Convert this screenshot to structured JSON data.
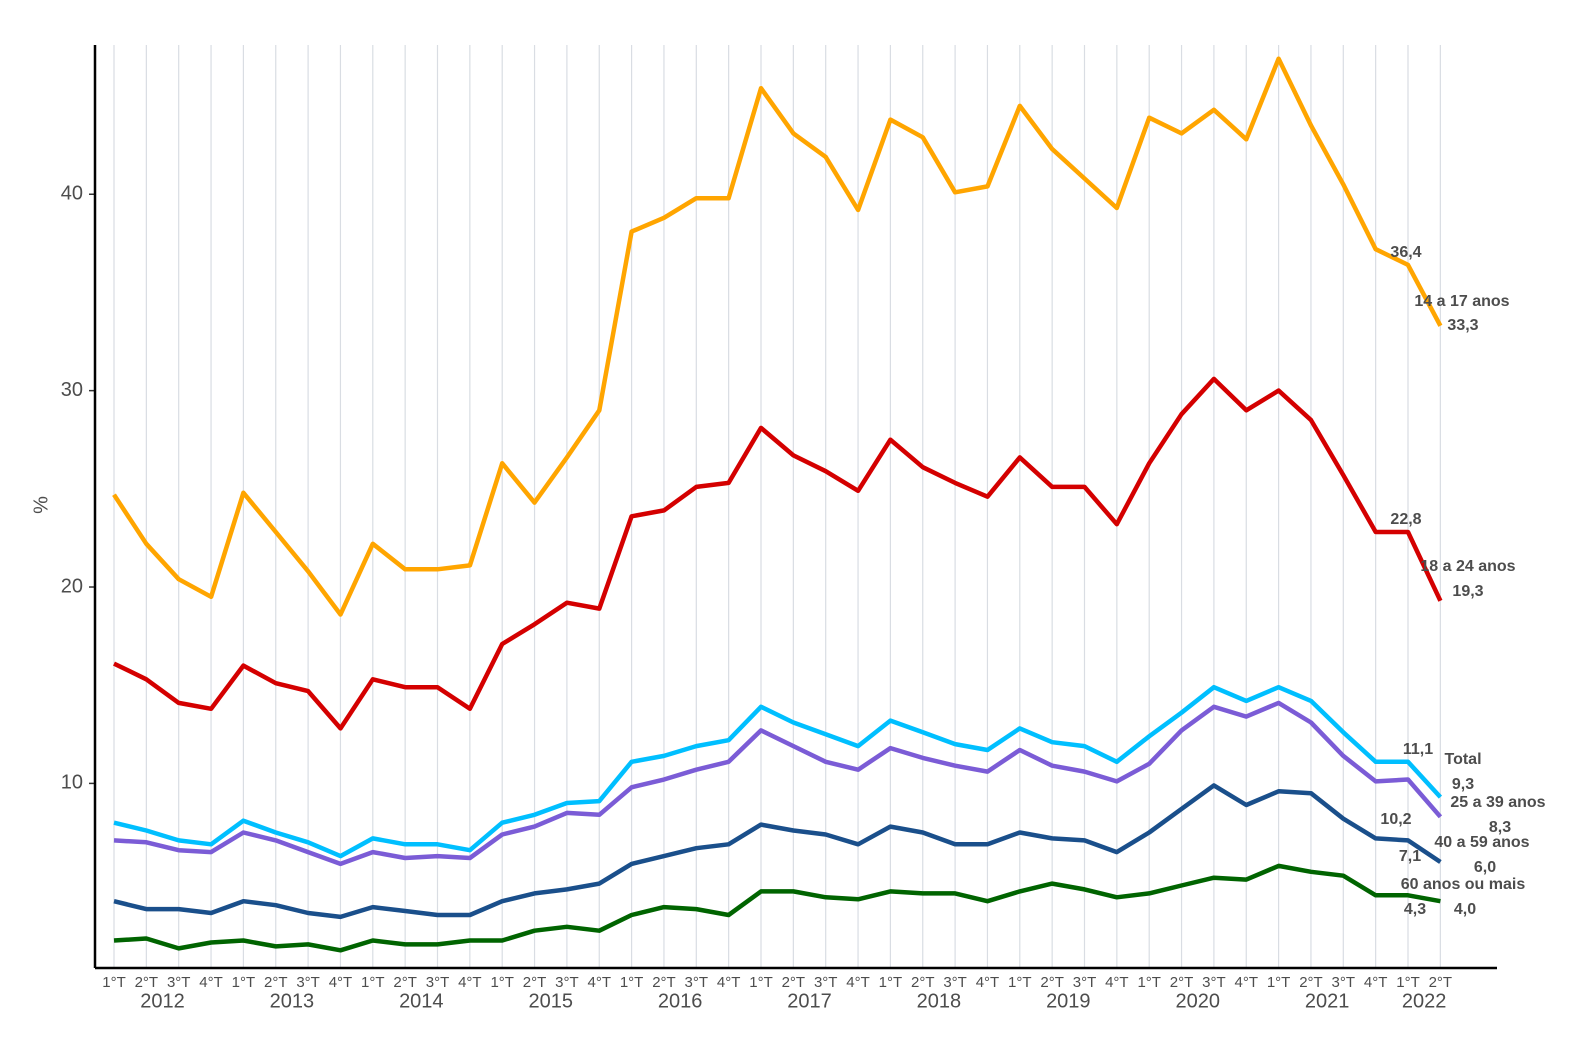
{
  "chart_data": {
    "type": "line",
    "ylabel": "%",
    "categories": [
      "1°T",
      "2°T",
      "3°T",
      "4°T",
      "1°T",
      "2°T",
      "3°T",
      "4°T",
      "1°T",
      "2°T",
      "3°T",
      "4°T",
      "1°T",
      "2°T",
      "3°T",
      "4°T",
      "1°T",
      "2°T",
      "3°T",
      "4°T",
      "1°T",
      "2°T",
      "3°T",
      "4°T",
      "1°T",
      "2°T",
      "3°T",
      "4°T",
      "1°T",
      "2°T",
      "3°T",
      "4°T",
      "1°T",
      "2°T",
      "3°T",
      "4°T",
      "1°T",
      "2°T",
      "3°T",
      "4°T",
      "1°T",
      "2°T"
    ],
    "years": [
      "2012",
      "2013",
      "2014",
      "2015",
      "2016",
      "2017",
      "2018",
      "2019",
      "2020",
      "2021",
      "2022"
    ],
    "ylim": [
      0.6,
      47.6
    ],
    "yticks": [
      10,
      20,
      30,
      40
    ],
    "grid": "x",
    "series": [
      {
        "name": "14 a 17 anos",
        "color": "#FFA500",
        "values": [
          24.7,
          22.2,
          20.4,
          19.5,
          24.8,
          22.8,
          20.8,
          18.6,
          22.2,
          20.9,
          20.9,
          21.1,
          26.3,
          24.3,
          26.6,
          29.0,
          38.1,
          38.8,
          39.8,
          39.8,
          45.4,
          43.1,
          41.9,
          39.2,
          43.8,
          42.9,
          40.1,
          40.4,
          44.5,
          42.3,
          40.8,
          39.3,
          43.9,
          43.1,
          44.3,
          42.8,
          46.9,
          43.5,
          40.5,
          37.2,
          36.4,
          33.3
        ],
        "value_labels": [
          null,
          null,
          null,
          null,
          null,
          null,
          null,
          null,
          null,
          null,
          null,
          null,
          null,
          null,
          null,
          null,
          null,
          null,
          null,
          null,
          null,
          null,
          null,
          null,
          null,
          null,
          null,
          null,
          null,
          null,
          null,
          null,
          null,
          null,
          null,
          null,
          null,
          null,
          null,
          null,
          "36,4",
          "33,3"
        ]
      },
      {
        "name": "18 a 24 anos",
        "color": "#D40000",
        "values": [
          16.1,
          15.3,
          14.1,
          13.8,
          16.0,
          15.1,
          14.7,
          12.8,
          15.3,
          14.9,
          14.9,
          13.8,
          17.1,
          18.1,
          19.2,
          18.9,
          23.6,
          23.9,
          25.1,
          25.3,
          28.1,
          26.7,
          25.9,
          24.9,
          27.5,
          26.1,
          25.3,
          24.6,
          26.6,
          25.1,
          25.1,
          23.2,
          26.3,
          28.8,
          30.6,
          29.0,
          30.0,
          28.5,
          25.7,
          22.8,
          22.8,
          19.3
        ],
        "value_labels": [
          null,
          null,
          null,
          null,
          null,
          null,
          null,
          null,
          null,
          null,
          null,
          null,
          null,
          null,
          null,
          null,
          null,
          null,
          null,
          null,
          null,
          null,
          null,
          null,
          null,
          null,
          null,
          null,
          null,
          null,
          null,
          null,
          null,
          null,
          null,
          null,
          null,
          null,
          null,
          null,
          "22,8",
          "19,3"
        ]
      },
      {
        "name": "Total",
        "color": "#00BFFF",
        "values": [
          8.0,
          7.6,
          7.1,
          6.9,
          8.1,
          7.5,
          7.0,
          6.3,
          7.2,
          6.9,
          6.9,
          6.6,
          8.0,
          8.4,
          9.0,
          9.1,
          11.1,
          11.4,
          11.9,
          12.2,
          13.9,
          13.1,
          12.5,
          11.9,
          13.2,
          12.6,
          12.0,
          11.7,
          12.8,
          12.1,
          11.9,
          11.1,
          12.4,
          13.6,
          14.9,
          14.2,
          14.9,
          14.2,
          12.6,
          11.1,
          11.1,
          9.3
        ],
        "value_labels": [
          null,
          null,
          null,
          null,
          null,
          null,
          null,
          null,
          null,
          null,
          null,
          null,
          null,
          null,
          null,
          null,
          null,
          null,
          null,
          null,
          null,
          null,
          null,
          null,
          null,
          null,
          null,
          null,
          null,
          null,
          null,
          null,
          null,
          null,
          null,
          null,
          null,
          null,
          null,
          null,
          "11,1",
          "9,3"
        ]
      },
      {
        "name": "25 a 39 anos",
        "color": "#7B5CD6",
        "values": [
          7.1,
          7.0,
          6.6,
          6.5,
          7.5,
          7.1,
          6.5,
          5.9,
          6.5,
          6.2,
          6.3,
          6.2,
          7.4,
          7.8,
          8.5,
          8.4,
          9.8,
          10.2,
          10.7,
          11.1,
          12.7,
          11.9,
          11.1,
          10.7,
          11.8,
          11.3,
          10.9,
          10.6,
          11.7,
          10.9,
          10.6,
          10.1,
          11.0,
          12.7,
          13.9,
          13.4,
          14.1,
          13.1,
          11.4,
          10.1,
          10.2,
          8.3
        ],
        "value_labels": [
          null,
          null,
          null,
          null,
          null,
          null,
          null,
          null,
          null,
          null,
          null,
          null,
          null,
          null,
          null,
          null,
          null,
          null,
          null,
          null,
          null,
          null,
          null,
          null,
          null,
          null,
          null,
          null,
          null,
          null,
          null,
          null,
          null,
          null,
          null,
          null,
          null,
          null,
          null,
          null,
          "10,2",
          "8,3"
        ]
      },
      {
        "name": "40 a 59 anos",
        "color": "#1A4F8B",
        "values": [
          4.0,
          3.6,
          3.6,
          3.4,
          4.0,
          3.8,
          3.4,
          3.2,
          3.7,
          3.5,
          3.3,
          3.3,
          4.0,
          4.4,
          4.6,
          4.9,
          5.9,
          6.3,
          6.7,
          6.9,
          7.9,
          7.6,
          7.4,
          6.9,
          7.8,
          7.5,
          6.9,
          6.9,
          7.5,
          7.2,
          7.1,
          6.5,
          7.5,
          8.7,
          9.9,
          8.9,
          9.6,
          9.5,
          8.2,
          7.2,
          7.1,
          6.0
        ],
        "value_labels": [
          null,
          null,
          null,
          null,
          null,
          null,
          null,
          null,
          null,
          null,
          null,
          null,
          null,
          null,
          null,
          null,
          null,
          null,
          null,
          null,
          null,
          null,
          null,
          null,
          null,
          null,
          null,
          null,
          null,
          null,
          null,
          null,
          null,
          null,
          null,
          null,
          null,
          null,
          null,
          null,
          "7,1",
          "6,0"
        ]
      },
      {
        "name": "60 anos ou mais",
        "color": "#006400",
        "values": [
          2.0,
          2.1,
          1.6,
          1.9,
          2.0,
          1.7,
          1.8,
          1.5,
          2.0,
          1.8,
          1.8,
          2.0,
          2.0,
          2.5,
          2.7,
          2.5,
          3.3,
          3.7,
          3.6,
          3.3,
          4.5,
          4.5,
          4.2,
          4.1,
          4.5,
          4.4,
          4.4,
          4.0,
          4.5,
          4.9,
          4.6,
          4.2,
          4.4,
          4.8,
          5.2,
          5.1,
          5.8,
          5.5,
          5.3,
          4.3,
          4.3,
          4.0
        ],
        "value_labels": [
          null,
          null,
          null,
          null,
          null,
          null,
          null,
          null,
          null,
          null,
          null,
          null,
          null,
          null,
          null,
          null,
          null,
          null,
          null,
          null,
          null,
          null,
          null,
          null,
          null,
          null,
          null,
          null,
          null,
          null,
          null,
          null,
          null,
          null,
          null,
          null,
          null,
          null,
          null,
          null,
          "4,3",
          "4,0"
        ]
      }
    ]
  }
}
